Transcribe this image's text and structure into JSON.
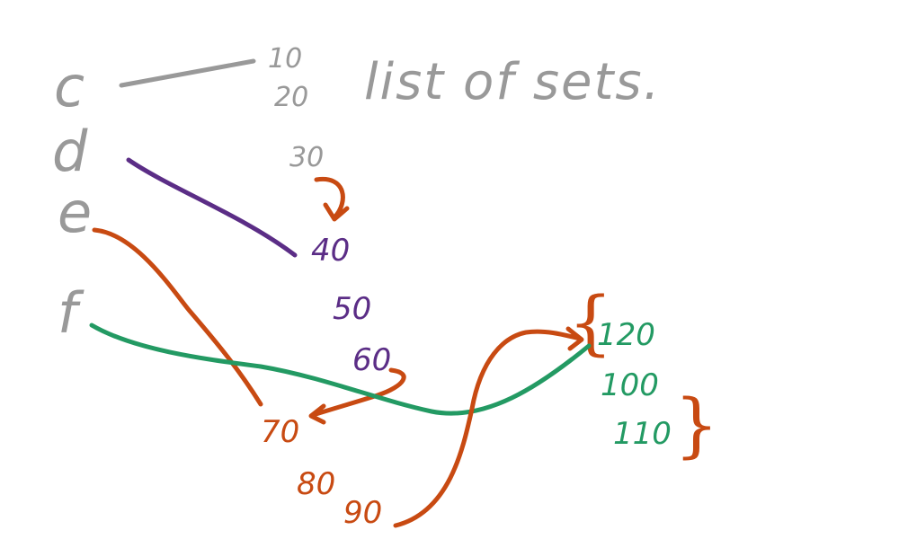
{
  "colors": {
    "gray": "#999999",
    "purple": "#5b2d86",
    "orange": "#c84a12",
    "green": "#239a63"
  },
  "title": "list of sets.",
  "labels": {
    "c": "c",
    "d": "d",
    "e": "e",
    "f": "f"
  },
  "numbers": {
    "n10": "10",
    "n20": "20",
    "n30": "30",
    "n40": "40",
    "n50": "50",
    "n60": "60",
    "n70": "70",
    "n80": "80",
    "n90": "90",
    "n100": "100",
    "n110": "110",
    "n120": "120"
  },
  "braces": {
    "open": "{",
    "close": "}"
  }
}
